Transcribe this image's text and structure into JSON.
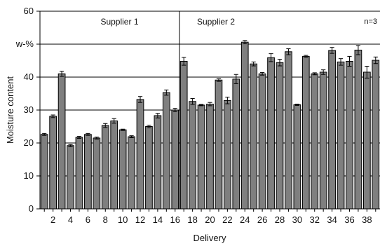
{
  "chart_data": {
    "type": "bar",
    "xlabel": "Delivery",
    "ylabel": "Moisture content",
    "ylim": [
      0,
      60
    ],
    "yticks": [
      0,
      10,
      20,
      30,
      40,
      50,
      60
    ],
    "ytick_labels": [
      "0",
      "10",
      "20",
      "30",
      "40",
      "w-%",
      "60"
    ],
    "grid": "horizontal",
    "annotation": "n=3",
    "groups": [
      {
        "label": "Supplier 1",
        "start": 1,
        "end": 16
      },
      {
        "label": "Supplier 2",
        "start": 17,
        "end": 39
      }
    ],
    "categories": [
      1,
      2,
      3,
      4,
      5,
      6,
      7,
      8,
      9,
      10,
      11,
      12,
      13,
      14,
      15,
      16,
      17,
      18,
      19,
      20,
      21,
      22,
      23,
      24,
      25,
      26,
      27,
      28,
      29,
      30,
      31,
      32,
      33,
      34,
      35,
      36,
      37,
      38,
      39
    ],
    "xtick_labels": [
      "2",
      "4",
      "6",
      "8",
      "10",
      "12",
      "14",
      "16",
      "18",
      "20",
      "22",
      "24",
      "26",
      "28",
      "30",
      "32",
      "34",
      "36",
      "38"
    ],
    "values": [
      22.6,
      28.1,
      41.0,
      19.2,
      21.7,
      22.6,
      21.5,
      25.3,
      26.7,
      24.0,
      21.9,
      33.2,
      25.0,
      28.3,
      35.3,
      30.0,
      44.8,
      32.6,
      31.5,
      31.8,
      39.1,
      32.9,
      39.4,
      50.6,
      44.0,
      41.0,
      45.9,
      44.4,
      47.7,
      31.6,
      46.3,
      41.0,
      41.5,
      48.1,
      44.6,
      44.8,
      48.2,
      41.5,
      45.1
    ],
    "errors": [
      0.3,
      0.4,
      0.8,
      0.3,
      0.3,
      0.3,
      0.3,
      0.6,
      0.7,
      0.2,
      0.3,
      0.9,
      0.4,
      0.7,
      0.8,
      0.5,
      1.2,
      0.9,
      0.2,
      0.5,
      0.4,
      1.0,
      1.4,
      0.5,
      0.6,
      0.4,
      1.2,
      1.0,
      0.9,
      0.2,
      0.3,
      0.3,
      0.7,
      0.9,
      1.0,
      1.5,
      1.4,
      1.8,
      1.0
    ],
    "bar_color": "#7f7f7f"
  }
}
